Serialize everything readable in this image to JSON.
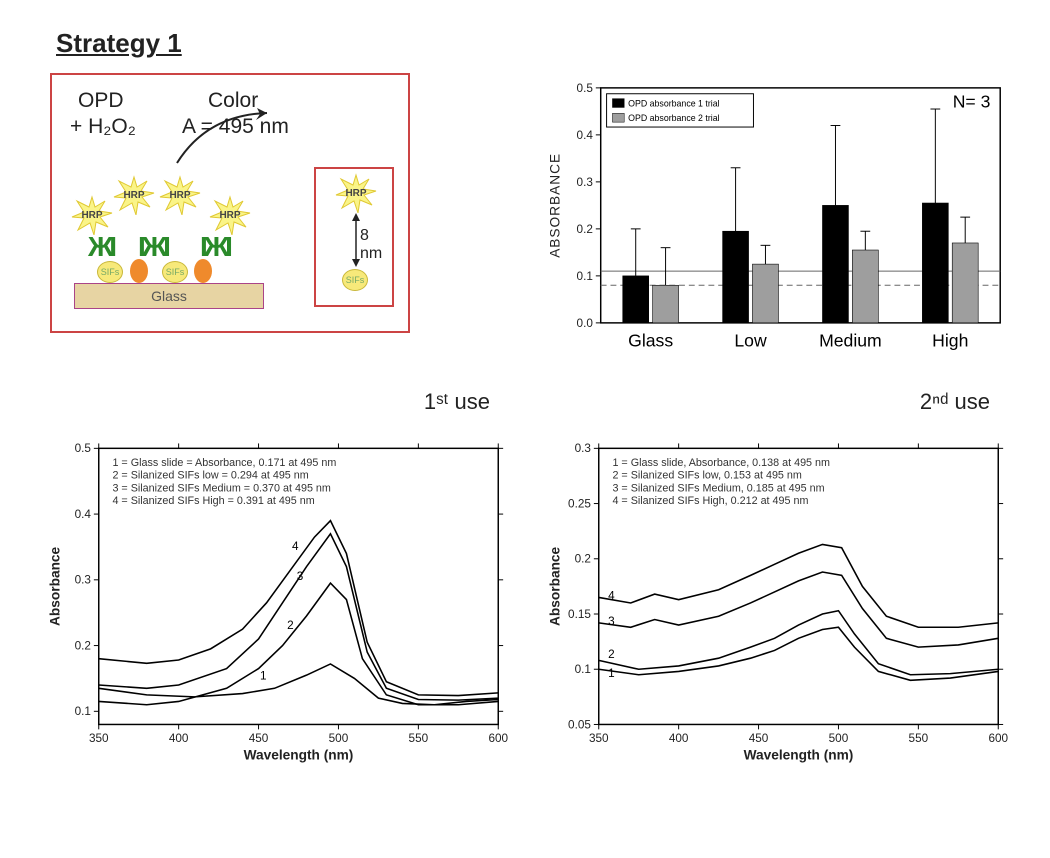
{
  "heading": "Strategy 1",
  "schematic": {
    "line1_left": "OPD",
    "line1_right": "Color",
    "line2_left": "+ H₂O₂",
    "line2_right": "A = 495 nm",
    "glass_label": "Glass",
    "sif_label": "SIFs",
    "hrp_label": "HRP",
    "distance_label": "8 nm",
    "colors": {
      "border": "#c84444",
      "glass": "#e7d4a3",
      "sif": "#f7e97a",
      "blob": "#ef8a2c",
      "antibody": "#2a8a2a",
      "hrp_fill": "#faf488",
      "hrp_stroke": "#e0c933"
    }
  },
  "bar_chart": {
    "type": "bar",
    "annotation": "N= 3",
    "ylabel": "ABSORBANCE",
    "ylim": [
      0,
      0.5
    ],
    "ytick_step": 0.1,
    "categories": [
      "Glass",
      "Low",
      "Medium",
      "High"
    ],
    "legend": [
      "OPD absorbance 1 trial",
      "OPD absorbance 2 trial"
    ],
    "series": [
      {
        "color": "#000000",
        "values": [
          0.1,
          0.195,
          0.25,
          0.255
        ],
        "err": [
          0.1,
          0.135,
          0.17,
          0.2
        ]
      },
      {
        "color": "#9e9e9e",
        "values": [
          0.08,
          0.125,
          0.155,
          0.17
        ],
        "err": [
          0.08,
          0.04,
          0.04,
          0.055
        ]
      }
    ],
    "ref_lines": [
      {
        "y": 0.11,
        "dash": "none"
      },
      {
        "y": 0.08,
        "dash": "6,4"
      }
    ],
    "label_fontsize": 18,
    "background_color": "#ffffff"
  },
  "spectrum1": {
    "type": "line",
    "title": "1ˢᵗ use",
    "xlabel": "Wavelength (nm)",
    "ylabel": "Absorbance",
    "xlim": [
      350,
      600
    ],
    "xtick_step": 50,
    "ylim": [
      0.08,
      0.5
    ],
    "yticks": [
      0.1,
      0.2,
      0.3,
      0.4,
      0.5
    ],
    "legend_lines": [
      "1 = Glass slide = Absorbance, 0.171 at 495 nm",
      "2 = Silanized SIFs low = 0.294 at 495 nm",
      "3 = Silanized SIFs Medium = 0.370 at 495 nm",
      "4 = Silanized SIFs High = 0.391 at 495 nm"
    ],
    "trace_color": "#000000",
    "traces": {
      "1": [
        [
          350,
          0.135
        ],
        [
          380,
          0.125
        ],
        [
          410,
          0.122
        ],
        [
          440,
          0.127
        ],
        [
          460,
          0.135
        ],
        [
          480,
          0.155
        ],
        [
          495,
          0.172
        ],
        [
          510,
          0.15
        ],
        [
          525,
          0.12
        ],
        [
          540,
          0.112
        ],
        [
          560,
          0.11
        ],
        [
          580,
          0.115
        ],
        [
          600,
          0.118
        ]
      ],
      "2": [
        [
          350,
          0.115
        ],
        [
          380,
          0.11
        ],
        [
          400,
          0.115
        ],
        [
          430,
          0.135
        ],
        [
          450,
          0.165
        ],
        [
          465,
          0.2
        ],
        [
          480,
          0.245
        ],
        [
          495,
          0.295
        ],
        [
          505,
          0.27
        ],
        [
          515,
          0.18
        ],
        [
          530,
          0.125
        ],
        [
          550,
          0.11
        ],
        [
          575,
          0.11
        ],
        [
          600,
          0.115
        ]
      ],
      "3": [
        [
          350,
          0.14
        ],
        [
          380,
          0.135
        ],
        [
          400,
          0.14
        ],
        [
          430,
          0.165
        ],
        [
          450,
          0.21
        ],
        [
          465,
          0.265
        ],
        [
          480,
          0.32
        ],
        [
          495,
          0.37
        ],
        [
          505,
          0.32
        ],
        [
          518,
          0.19
        ],
        [
          530,
          0.135
        ],
        [
          550,
          0.118
        ],
        [
          575,
          0.117
        ],
        [
          600,
          0.12
        ]
      ],
      "4": [
        [
          350,
          0.18
        ],
        [
          380,
          0.173
        ],
        [
          400,
          0.178
        ],
        [
          420,
          0.195
        ],
        [
          440,
          0.225
        ],
        [
          455,
          0.265
        ],
        [
          470,
          0.315
        ],
        [
          485,
          0.365
        ],
        [
          495,
          0.39
        ],
        [
          505,
          0.34
        ],
        [
          518,
          0.205
        ],
        [
          530,
          0.145
        ],
        [
          550,
          0.125
        ],
        [
          575,
          0.124
        ],
        [
          600,
          0.128
        ]
      ]
    },
    "curve_labels": [
      {
        "t": "1",
        "x": 455,
        "y": 0.148
      },
      {
        "t": "2",
        "x": 472,
        "y": 0.225
      },
      {
        "t": "3",
        "x": 478,
        "y": 0.3
      },
      {
        "t": "4",
        "x": 475,
        "y": 0.345
      }
    ]
  },
  "spectrum2": {
    "type": "line",
    "title": "2ⁿᵈ use",
    "xlabel": "Wavelength (nm)",
    "ylabel": "Absorbance",
    "xlim": [
      350,
      600
    ],
    "xtick_step": 50,
    "ylim": [
      0.05,
      0.3
    ],
    "ytick_step": 0.05,
    "legend_lines": [
      "1 = Glass slide, Absorbance, 0.138 at 495 nm",
      "2 = Silanized SIFs low, 0.153 at 495 nm",
      "3 = Silanized SIFs Medium, 0.185 at 495 nm",
      "4 = Silanized SIFs High, 0.212 at 495 nm"
    ],
    "trace_color": "#000000",
    "traces": {
      "1": [
        [
          350,
          0.1
        ],
        [
          375,
          0.095
        ],
        [
          400,
          0.098
        ],
        [
          425,
          0.103
        ],
        [
          445,
          0.11
        ],
        [
          460,
          0.117
        ],
        [
          475,
          0.128
        ],
        [
          490,
          0.136
        ],
        [
          500,
          0.138
        ],
        [
          510,
          0.12
        ],
        [
          525,
          0.098
        ],
        [
          545,
          0.09
        ],
        [
          570,
          0.092
        ],
        [
          600,
          0.098
        ]
      ],
      "2": [
        [
          350,
          0.108
        ],
        [
          375,
          0.1
        ],
        [
          400,
          0.103
        ],
        [
          425,
          0.11
        ],
        [
          445,
          0.12
        ],
        [
          460,
          0.128
        ],
        [
          475,
          0.14
        ],
        [
          490,
          0.15
        ],
        [
          500,
          0.153
        ],
        [
          510,
          0.132
        ],
        [
          525,
          0.105
        ],
        [
          545,
          0.095
        ],
        [
          570,
          0.096
        ],
        [
          600,
          0.1
        ]
      ],
      "3": [
        [
          350,
          0.142
        ],
        [
          370,
          0.138
        ],
        [
          385,
          0.145
        ],
        [
          400,
          0.14
        ],
        [
          425,
          0.148
        ],
        [
          445,
          0.16
        ],
        [
          460,
          0.17
        ],
        [
          475,
          0.18
        ],
        [
          490,
          0.188
        ],
        [
          502,
          0.185
        ],
        [
          515,
          0.155
        ],
        [
          530,
          0.128
        ],
        [
          550,
          0.12
        ],
        [
          575,
          0.122
        ],
        [
          600,
          0.128
        ]
      ],
      "4": [
        [
          350,
          0.165
        ],
        [
          370,
          0.16
        ],
        [
          385,
          0.168
        ],
        [
          400,
          0.163
        ],
        [
          425,
          0.172
        ],
        [
          445,
          0.185
        ],
        [
          460,
          0.195
        ],
        [
          475,
          0.205
        ],
        [
          490,
          0.213
        ],
        [
          502,
          0.21
        ],
        [
          515,
          0.175
        ],
        [
          530,
          0.148
        ],
        [
          550,
          0.138
        ],
        [
          575,
          0.138
        ],
        [
          600,
          0.142
        ]
      ]
    },
    "curve_labels": [
      {
        "t": "1",
        "x": 360,
        "y": 0.093
      },
      {
        "t": "2",
        "x": 360,
        "y": 0.11
      },
      {
        "t": "3",
        "x": 360,
        "y": 0.14
      },
      {
        "t": "4",
        "x": 360,
        "y": 0.163
      }
    ]
  }
}
